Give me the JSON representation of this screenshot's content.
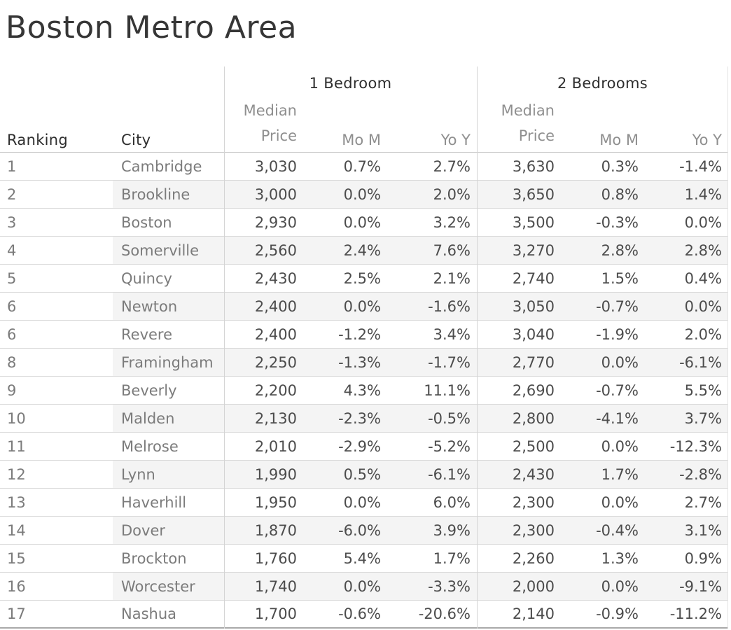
{
  "title": "Boston Metro Area",
  "header": {
    "ranking": "Ranking",
    "city": "City",
    "group_1br": "1 Bedroom",
    "group_2br": "2 Bedrooms",
    "median_line1": "Median",
    "median_line2": "Price",
    "mom": "Mo M",
    "yoy": "Yo Y"
  },
  "colors": {
    "title_text": "#363636",
    "header_text": "#2e2e2e",
    "subheader_text": "#8f8f8f",
    "row_label_text": "#7b7b7b",
    "value_text": "#4c4c4c",
    "band": "#f4f4f4",
    "grid_line": "#d6d6d6",
    "header_line": "#c2c2c2",
    "divider_line": "#d4d4d4",
    "bottom_border": "#a9a9a9"
  },
  "chart_data": {
    "type": "table",
    "title": "Boston Metro Area",
    "column_groups": [
      "1 Bedroom",
      "2 Bedrooms"
    ],
    "columns": [
      "Ranking",
      "City",
      "1 Bedroom Median Price",
      "1 Bedroom Mo M",
      "1 Bedroom Yo Y",
      "2 Bedrooms Median Price",
      "2 Bedrooms Mo M",
      "2 Bedrooms Yo Y"
    ],
    "rows": [
      [
        "1",
        "Cambridge",
        "3,030",
        "0.7%",
        "2.7%",
        "3,630",
        "0.3%",
        "-1.4%"
      ],
      [
        "2",
        "Brookline",
        "3,000",
        "0.0%",
        "2.0%",
        "3,650",
        "0.8%",
        "1.4%"
      ],
      [
        "3",
        "Boston",
        "2,930",
        "0.0%",
        "3.2%",
        "3,500",
        "-0.3%",
        "0.0%"
      ],
      [
        "4",
        "Somerville",
        "2,560",
        "2.4%",
        "7.6%",
        "3,270",
        "2.8%",
        "2.8%"
      ],
      [
        "5",
        "Quincy",
        "2,430",
        "2.5%",
        "2.1%",
        "2,740",
        "1.5%",
        "0.4%"
      ],
      [
        "6",
        "Newton",
        "2,400",
        "0.0%",
        "-1.6%",
        "3,050",
        "-0.7%",
        "0.0%"
      ],
      [
        "6",
        "Revere",
        "2,400",
        "-1.2%",
        "3.4%",
        "3,040",
        "-1.9%",
        "2.0%"
      ],
      [
        "8",
        "Framingham",
        "2,250",
        "-1.3%",
        "-1.7%",
        "2,770",
        "0.0%",
        "-6.1%"
      ],
      [
        "9",
        "Beverly",
        "2,200",
        "4.3%",
        "11.1%",
        "2,690",
        "-0.7%",
        "5.5%"
      ],
      [
        "10",
        "Malden",
        "2,130",
        "-2.3%",
        "-0.5%",
        "2,800",
        "-4.1%",
        "3.7%"
      ],
      [
        "11",
        "Melrose",
        "2,010",
        "-2.9%",
        "-5.2%",
        "2,500",
        "0.0%",
        "-12.3%"
      ],
      [
        "12",
        "Lynn",
        "1,990",
        "0.5%",
        "-6.1%",
        "2,430",
        "1.7%",
        "-2.8%"
      ],
      [
        "13",
        "Haverhill",
        "1,950",
        "0.0%",
        "6.0%",
        "2,300",
        "0.0%",
        "2.7%"
      ],
      [
        "14",
        "Dover",
        "1,870",
        "-6.0%",
        "3.9%",
        "2,300",
        "-0.4%",
        "3.1%"
      ],
      [
        "15",
        "Brockton",
        "1,760",
        "5.4%",
        "1.7%",
        "2,260",
        "1.3%",
        "0.9%"
      ],
      [
        "16",
        "Worcester",
        "1,740",
        "0.0%",
        "-3.3%",
        "2,000",
        "0.0%",
        "-9.1%"
      ],
      [
        "17",
        "Nashua",
        "1,700",
        "-0.6%",
        "-20.6%",
        "2,140",
        "-0.9%",
        "-11.2%"
      ]
    ]
  }
}
